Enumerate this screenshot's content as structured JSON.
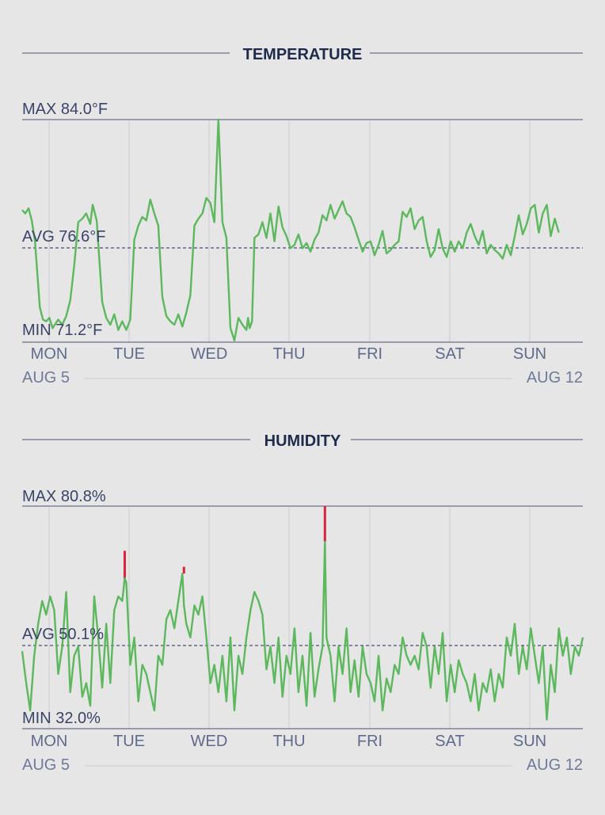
{
  "colors": {
    "background": "#e6e6e6",
    "title": "#1f2b4d",
    "rule": "#69708a",
    "grid": "#c8ccd4",
    "label": "#3a4468",
    "day_label": "#5f6a8c",
    "date_label": "#6f7a98",
    "line": "#5cb85c",
    "alert": "#d9263d"
  },
  "temperature": {
    "title": "TEMPERATURE",
    "max_label": "MAX 84.0°F",
    "avg_label": "AVG 76.6°F",
    "min_label": "MIN 71.2°F",
    "start_date": "AUG 5",
    "end_date": "AUG 12"
  },
  "humidity": {
    "title": "HUMIDITY",
    "max_label": "MAX 80.8%",
    "avg_label": "AVG 50.1%",
    "min_label": "MIN 32.0%",
    "start_date": "AUG 5",
    "end_date": "AUG 12"
  },
  "days": [
    "MON",
    "TUE",
    "WED",
    "THU",
    "FRI",
    "SAT",
    "SUN"
  ],
  "chart_data": [
    {
      "type": "line",
      "title": "TEMPERATURE",
      "unit": "°F",
      "max": 84.0,
      "avg": 76.6,
      "min": 71.2,
      "ylim": [
        71.2,
        84.0
      ],
      "xlim": [
        0,
        7
      ],
      "x_ticks": [
        "MON",
        "TUE",
        "WED",
        "THU",
        "FRI",
        "SAT",
        "SUN"
      ],
      "date_range": [
        "AUG 5",
        "AUG 12"
      ],
      "grid": true,
      "series": [
        {
          "x": [
            0,
            0.04,
            0.08,
            0.12,
            0.16,
            0.22,
            0.26,
            0.3,
            0.34,
            0.38,
            0.45,
            0.5,
            0.55,
            0.6,
            0.65,
            0.7,
            0.75,
            0.8,
            0.85,
            0.88,
            0.93,
            1.0,
            1.05,
            1.1,
            1.15,
            1.2,
            1.25,
            1.3,
            1.35,
            1.4,
            1.45,
            1.5,
            1.55,
            1.6,
            1.65,
            1.7,
            1.75,
            1.8,
            1.85,
            1.9,
            1.95,
            2.0,
            2.05,
            2.1,
            2.15,
            2.2,
            2.25,
            2.3,
            2.35,
            2.4,
            2.45,
            2.5,
            2.55,
            2.6,
            2.65,
            2.7,
            2.75,
            2.8,
            2.82,
            2.84,
            2.87,
            2.9,
            2.95,
            3.0,
            3.05,
            3.1,
            3.15,
            3.2,
            3.25,
            3.3,
            3.35,
            3.4,
            3.45,
            3.5,
            3.55,
            3.6,
            3.65,
            3.7,
            3.75,
            3.8,
            3.85,
            3.9,
            3.95,
            4.0,
            4.05,
            4.1,
            4.15,
            4.2,
            4.25,
            4.3,
            4.35,
            4.4,
            4.45,
            4.5,
            4.55,
            4.6,
            4.65,
            4.7,
            4.75,
            4.8,
            4.85,
            4.9,
            4.95,
            5.0,
            5.05,
            5.1,
            5.15,
            5.2,
            5.25,
            5.3,
            5.35,
            5.4,
            5.45,
            5.5,
            5.55,
            5.6,
            5.65,
            5.7,
            5.75,
            5.8,
            5.85,
            5.9,
            5.95,
            6.0,
            6.05,
            6.1,
            6.15,
            6.2,
            6.25,
            6.3,
            6.35,
            6.4,
            6.45,
            6.5,
            6.55,
            6.6,
            6.65,
            6.7
          ],
          "values": [
            78.8,
            78.6,
            78.9,
            78.2,
            77.0,
            73.2,
            72.5,
            72.4,
            72.6,
            72.0,
            72.5,
            72.2,
            72.7,
            73.6,
            75.6,
            78.1,
            78.3,
            78.6,
            78.0,
            79.1,
            78.2,
            73.5,
            72.6,
            72.2,
            72.8,
            71.9,
            72.4,
            71.9,
            72.5,
            77.1,
            77.9,
            78.4,
            78.2,
            79.4,
            78.6,
            77.9,
            73.8,
            72.7,
            72.4,
            72.2,
            72.8,
            72.1,
            72.9,
            73.9,
            77.9,
            78.3,
            78.6,
            79.5,
            79.2,
            78.1,
            84.0,
            78.1,
            77.2,
            72.0,
            71.3,
            72.6,
            72.2,
            71.9,
            72.6,
            72.0,
            72.4,
            77.2,
            77.4,
            78.1,
            77.2,
            78.6,
            77.0,
            79.0,
            77.8,
            77.3,
            76.6,
            76.8,
            77.4,
            76.6,
            76.9,
            76.4,
            77.1,
            77.5,
            78.5,
            78.2,
            79.1,
            78.3,
            78.8,
            79.3,
            78.6,
            78.4,
            77.8,
            77.1,
            76.4,
            76.9,
            77.0,
            76.2,
            76.8,
            77.6,
            76.3,
            76.5,
            76.8,
            77.0,
            78.7,
            78.4,
            78.9,
            77.7,
            78.2,
            78.4,
            77.0,
            76.1,
            76.5,
            77.7,
            76.6,
            76.1,
            77.0,
            76.4,
            77.0,
            76.6,
            77.5,
            78.0,
            77.3,
            76.8,
            77.6,
            76.3,
            76.8,
            76.5,
            76.3,
            76.0,
            76.8,
            76.2,
            77.3,
            78.5,
            77.4,
            78.0,
            78.9,
            79.1,
            77.5,
            78.6,
            79.1,
            77.3,
            78.3,
            77.5
          ]
        }
      ]
    },
    {
      "type": "line",
      "title": "HUMIDITY",
      "unit": "%",
      "max": 80.8,
      "avg": 50.1,
      "min": 32.0,
      "ylim": [
        32.0,
        80.8
      ],
      "xlim": [
        0,
        7
      ],
      "x_ticks": [
        "MON",
        "TUE",
        "WED",
        "THU",
        "FRI",
        "SAT",
        "SUN"
      ],
      "date_range": [
        "AUG 5",
        "AUG 12"
      ],
      "grid": true,
      "series": [
        {
          "x": [
            0,
            0.05,
            0.1,
            0.15,
            0.2,
            0.25,
            0.3,
            0.35,
            0.4,
            0.45,
            0.5,
            0.55,
            0.6,
            0.65,
            0.7,
            0.75,
            0.8,
            0.85,
            0.9,
            0.95,
            1.0,
            1.05,
            1.1,
            1.15,
            1.2,
            1.25,
            1.28,
            1.3,
            1.35,
            1.4,
            1.45,
            1.5,
            1.55,
            1.6,
            1.65,
            1.7,
            1.75,
            1.8,
            1.85,
            1.9,
            1.95,
            2.0,
            2.02,
            2.05,
            2.1,
            2.15,
            2.2,
            2.25,
            2.3,
            2.35,
            2.4,
            2.45,
            2.5,
            2.55,
            2.6,
            2.65,
            2.7,
            2.75,
            2.8,
            2.85,
            2.9,
            2.95,
            3.0,
            3.05,
            3.1,
            3.15,
            3.2,
            3.25,
            3.3,
            3.35,
            3.4,
            3.45,
            3.5,
            3.55,
            3.6,
            3.65,
            3.7,
            3.75,
            3.78,
            3.8,
            3.85,
            3.9,
            3.95,
            4.0,
            4.05,
            4.1,
            4.15,
            4.2,
            4.25,
            4.3,
            4.35,
            4.4,
            4.45,
            4.5,
            4.55,
            4.6,
            4.65,
            4.7,
            4.75,
            4.8,
            4.85,
            4.9,
            4.95,
            5.0,
            5.05,
            5.1,
            5.15,
            5.2,
            5.25,
            5.3,
            5.35,
            5.4,
            5.45,
            5.5,
            5.55,
            5.6,
            5.65,
            5.7,
            5.75,
            5.8,
            5.85,
            5.9,
            5.95,
            6.0,
            6.05,
            6.1,
            6.15,
            6.2,
            6.25,
            6.3,
            6.35,
            6.4,
            6.45,
            6.5,
            6.55,
            6.6,
            6.65,
            6.7,
            6.75,
            6.8,
            6.85,
            6.9,
            6.95,
            7.0
          ],
          "values": [
            49.0,
            42.0,
            36.0,
            48.0,
            55.0,
            60.0,
            57.0,
            61.0,
            58.0,
            44.0,
            50.0,
            62.0,
            40.0,
            48.0,
            50.0,
            39.0,
            42.0,
            37.0,
            61.0,
            52.0,
            41.0,
            55.0,
            42.0,
            58.0,
            61.0,
            60.0,
            65.0,
            64.0,
            46.0,
            52.0,
            38.0,
            46.0,
            44.0,
            40.0,
            36.0,
            48.0,
            46.0,
            56.0,
            58.0,
            54.0,
            60.0,
            66.0,
            59.0,
            55.0,
            52.0,
            59.0,
            57.0,
            61.0,
            52.0,
            42.0,
            46.0,
            40.0,
            48.0,
            38.0,
            52.0,
            36.0,
            48.0,
            44.0,
            52.0,
            58.0,
            62.0,
            60.0,
            57.0,
            45.0,
            50.0,
            42.0,
            52.0,
            39.0,
            48.0,
            44.0,
            54.0,
            40.0,
            48.0,
            37.0,
            53.0,
            39.0,
            45.0,
            50.0,
            73.0,
            52.0,
            48.0,
            38.0,
            50.0,
            44.0,
            54.0,
            40.0,
            47.0,
            39.0,
            50.0,
            44.0,
            42.0,
            38.0,
            48.0,
            36.0,
            43.0,
            40.0,
            46.0,
            44.0,
            52.0,
            48.0,
            46.0,
            48.0,
            45.0,
            53.0,
            50.0,
            41.0,
            50.0,
            44.0,
            53.0,
            38.0,
            46.0,
            40.0,
            47.0,
            44.0,
            42.0,
            38.0,
            44.0,
            36.0,
            42.0,
            40.0,
            45.0,
            38.0,
            44.0,
            41.0,
            52.0,
            48.0,
            55.0,
            44.0,
            50.0,
            45.0,
            54.0,
            48.0,
            42.0,
            50.0,
            34.0,
            46.0,
            40.0,
            54.0,
            48.0,
            52.0,
            44.0,
            50.0,
            48.0,
            52.0
          ]
        }
      ],
      "alerts": [
        {
          "x": 1.28,
          "from": 64.0,
          "to": 71.0
        },
        {
          "x": 2.02,
          "from": 66.0,
          "to": 67.5
        },
        {
          "x": 3.78,
          "from": 73.0,
          "to": 80.8
        }
      ]
    }
  ]
}
